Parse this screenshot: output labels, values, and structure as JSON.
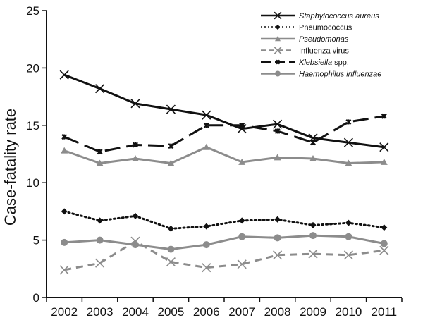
{
  "chart_data": {
    "type": "line",
    "title": "",
    "xlabel": "",
    "ylabel": "Case-fatality rate",
    "ylim": [
      0,
      25
    ],
    "yticks": [
      0,
      5,
      10,
      15,
      20,
      25
    ],
    "categories": [
      "2002",
      "2003",
      "2004",
      "2005",
      "2006",
      "2007",
      "2008",
      "2009",
      "2010",
      "2011"
    ],
    "grid": false,
    "legend_position": "top-right",
    "series": [
      {
        "name": "Staphylococcus aureus",
        "name_parts": [
          {
            "text": "Staphylococcus aureus",
            "italic": true
          }
        ],
        "values": [
          19.4,
          18.2,
          16.9,
          16.4,
          15.9,
          14.7,
          15.1,
          13.9,
          13.5,
          13.1
        ],
        "color": "#111111",
        "dash": "solid",
        "marker": "x"
      },
      {
        "name": "Pneumococcus",
        "name_parts": [
          {
            "text": "Pneumococcus",
            "italic": false
          }
        ],
        "values": [
          7.5,
          6.7,
          7.1,
          6.0,
          6.2,
          6.7,
          6.8,
          6.3,
          6.5,
          6.1
        ],
        "color": "#111111",
        "dash": "dotted",
        "marker": "diamond"
      },
      {
        "name": "Pseudomonas",
        "name_parts": [
          {
            "text": "Pseudomonas",
            "italic": true
          }
        ],
        "values": [
          12.8,
          11.7,
          12.1,
          11.7,
          13.1,
          11.8,
          12.2,
          12.1,
          11.7,
          11.8
        ],
        "color": "#8c8c8c",
        "dash": "solid",
        "marker": "triangle"
      },
      {
        "name": "Influenza virus",
        "name_parts": [
          {
            "text": "Influenza virus",
            "italic": false
          }
        ],
        "values": [
          2.4,
          3.0,
          4.9,
          3.1,
          2.6,
          2.9,
          3.7,
          3.8,
          3.7,
          4.1
        ],
        "color": "#8c8c8c",
        "dash": "dashed",
        "marker": "x"
      },
      {
        "name": "Klebsiella spp.",
        "name_parts": [
          {
            "text": "Klebsiella",
            "italic": true
          },
          {
            "text": " spp.",
            "italic": false
          }
        ],
        "values": [
          14.0,
          12.7,
          13.3,
          13.2,
          15.0,
          15.0,
          14.5,
          13.5,
          15.3,
          15.8
        ],
        "color": "#111111",
        "dash": "longdash",
        "marker": "star"
      },
      {
        "name": "Haemophilus influenzae",
        "name_parts": [
          {
            "text": "Haemophilus influenzae",
            "italic": true
          }
        ],
        "values": [
          4.8,
          5.0,
          4.6,
          4.2,
          4.6,
          5.3,
          5.2,
          5.4,
          5.3,
          4.7
        ],
        "color": "#8c8c8c",
        "dash": "solid",
        "marker": "circle"
      }
    ]
  }
}
